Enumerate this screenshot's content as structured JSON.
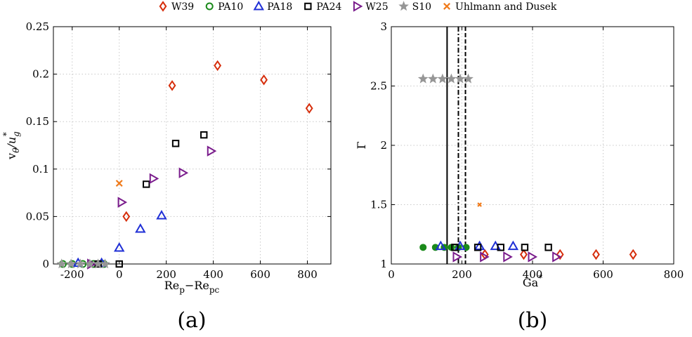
{
  "legend": [
    {
      "name": "W39",
      "marker": "diamond",
      "color": "#d62e0c"
    },
    {
      "name": "PA10",
      "marker": "circle",
      "color": "#1a8a1a"
    },
    {
      "name": "PA18",
      "marker": "triangle-up",
      "color": "#1f2fd6"
    },
    {
      "name": "PA24",
      "marker": "square",
      "color": "#000000"
    },
    {
      "name": "W25",
      "marker": "triangle-right",
      "color": "#7a1c8c"
    },
    {
      "name": "S10",
      "marker": "star",
      "color": "#969696"
    },
    {
      "name": "Uhlmann and Dusek",
      "marker": "x",
      "color": "#f07a1a"
    }
  ],
  "chart_data": [
    {
      "type": "scatter",
      "panel_label": "(a)",
      "xlabel": "Re_p−Re_pc",
      "ylabel": "v_θ/u*_g",
      "xlim": [
        -280,
        900
      ],
      "ylim": [
        0,
        0.25
      ],
      "xticks": [
        -200,
        0,
        200,
        400,
        600,
        800
      ],
      "yticks": [
        0,
        0.05,
        0.1,
        0.15,
        0.2,
        0.25
      ],
      "ytick_labels": [
        "0",
        "0.05",
        "0.1",
        "0.15",
        "0.2",
        "0.25"
      ],
      "grid": true,
      "series": [
        {
          "name": "W39",
          "points": [
            [
              30,
              0.05
            ],
            [
              225,
              0.188
            ],
            [
              418,
              0.209
            ],
            [
              615,
              0.194
            ],
            [
              808,
              0.164
            ]
          ]
        },
        {
          "name": "PA10",
          "points": [
            [
              -240,
              0
            ],
            [
              -200,
              0
            ],
            [
              -155,
              0
            ],
            [
              -110,
              0
            ],
            [
              -65,
              0
            ]
          ]
        },
        {
          "name": "PA18",
          "points": [
            [
              -175,
              0.001
            ],
            [
              -75,
              0.001
            ],
            [
              0,
              0.017
            ],
            [
              90,
              0.037
            ],
            [
              180,
              0.051
            ]
          ]
        },
        {
          "name": "PA24",
          "points": [
            [
              -90,
              0
            ],
            [
              0,
              0
            ],
            [
              115,
              0.084
            ],
            [
              240,
              0.127
            ],
            [
              360,
              0.136
            ]
          ]
        },
        {
          "name": "W25",
          "points": [
            [
              -120,
              0
            ],
            [
              10,
              0.065
            ],
            [
              145,
              0.09
            ],
            [
              270,
              0.096
            ],
            [
              390,
              0.119
            ]
          ]
        },
        {
          "name": "S10",
          "points": [
            [
              -245,
              0
            ],
            [
              -205,
              0
            ],
            [
              -165,
              0
            ],
            [
              -125,
              0
            ],
            [
              -90,
              0
            ],
            [
              -60,
              0
            ]
          ]
        },
        {
          "name": "Uhlmann and Dusek",
          "points": [
            [
              0,
              0.085
            ]
          ]
        }
      ]
    },
    {
      "type": "scatter",
      "panel_label": "(b)",
      "xlabel": "Ga*",
      "ylabel": "Γ",
      "xlim": [
        0,
        800
      ],
      "ylim": [
        1,
        3
      ],
      "xticks": [
        0,
        200,
        400,
        600,
        800
      ],
      "yticks": [
        1,
        1.5,
        2,
        2.5,
        3
      ],
      "ytick_labels": [
        "1",
        "1.5",
        "2",
        "2.5",
        "3"
      ],
      "grid": true,
      "vertical_lines": [
        {
          "x": 158,
          "style": "solid"
        },
        {
          "x": 190,
          "style": "dashdot"
        },
        {
          "x": 210,
          "style": "dashed"
        }
      ],
      "series": [
        {
          "name": "W39",
          "points": [
            [
              265,
              1.08
            ],
            [
              375,
              1.08
            ],
            [
              478,
              1.08
            ],
            [
              580,
              1.08
            ],
            [
              685,
              1.08
            ]
          ]
        },
        {
          "name": "PA10",
          "points": [
            [
              90,
              1.14
            ],
            [
              125,
              1.14
            ],
            [
              150,
              1.14
            ],
            [
              170,
              1.14
            ],
            [
              190,
              1.14
            ],
            [
              212,
              1.14
            ]
          ]
        },
        {
          "name": "PA18",
          "points": [
            [
              140,
              1.15
            ],
            [
              195,
              1.15
            ],
            [
              250,
              1.15
            ],
            [
              295,
              1.15
            ],
            [
              345,
              1.15
            ]
          ]
        },
        {
          "name": "PA24",
          "points": [
            [
              180,
              1.14
            ],
            [
              245,
              1.14
            ],
            [
              310,
              1.14
            ],
            [
              378,
              1.14
            ],
            [
              445,
              1.14
            ]
          ]
        },
        {
          "name": "W25",
          "points": [
            [
              185,
              1.06
            ],
            [
              262,
              1.06
            ],
            [
              328,
              1.06
            ],
            [
              398,
              1.06
            ],
            [
              467,
              1.06
            ]
          ]
        },
        {
          "name": "S10",
          "points": [
            [
              90,
              2.56
            ],
            [
              118,
              2.56
            ],
            [
              145,
              2.56
            ],
            [
              170,
              2.56
            ],
            [
              195,
              2.56
            ],
            [
              218,
              2.56
            ]
          ]
        },
        {
          "name": "Uhlmann and Dusek",
          "points": [
            [
              250,
              1.5
            ]
          ]
        }
      ]
    }
  ]
}
